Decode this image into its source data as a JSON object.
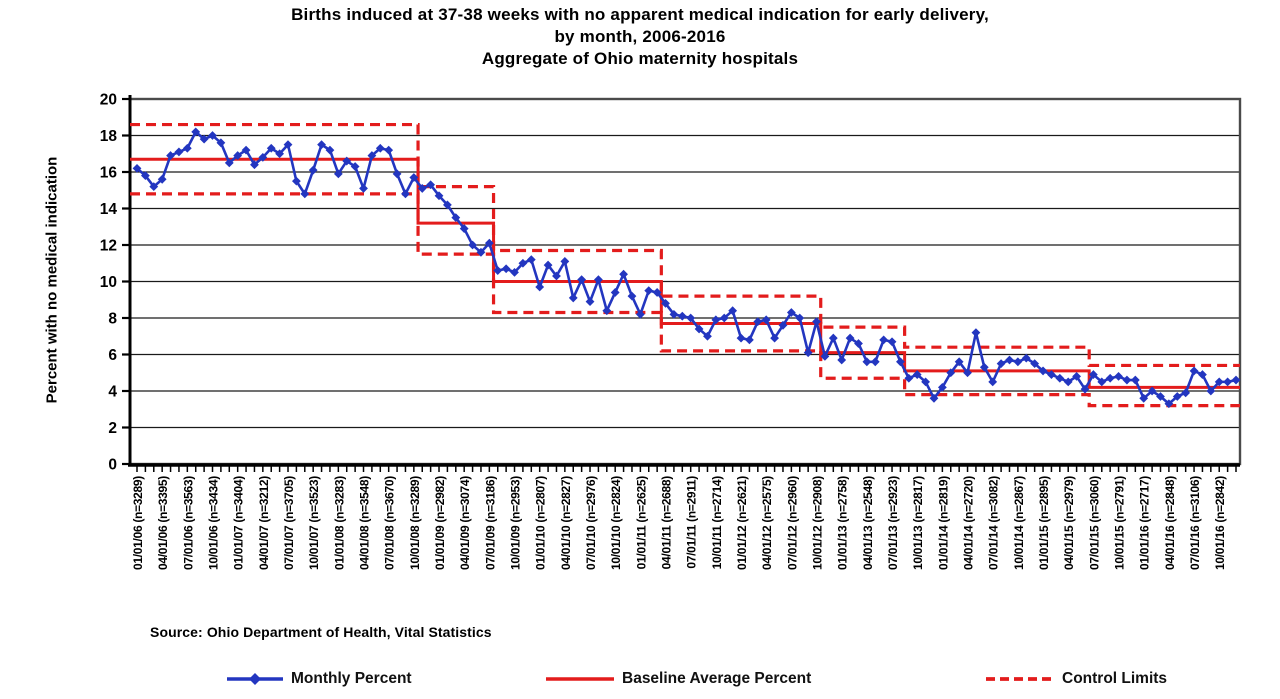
{
  "page": {
    "title_line1": "Births induced at 37-38 weeks with no apparent medical indication for early delivery,",
    "title_line2": "by month, 2006-2016",
    "title_line3": "Aggregate of Ohio maternity hospitals",
    "source_note": "Source: Ohio Department of Health, Vital Statistics"
  },
  "legend": {
    "monthly_label": "Monthly Percent",
    "baseline_label": "Baseline Average Percent",
    "control_label": "Control Limits"
  },
  "chart_data": {
    "type": "line",
    "title": "Births induced at 37-38 weeks with no apparent medical indication for early delivery, by month, 2006-2016 - Aggregate of Ohio maternity hospitals",
    "ylabel": "Percent with no medical indication",
    "ylim": [
      0,
      20
    ],
    "yticks": [
      0,
      2,
      4,
      6,
      8,
      10,
      12,
      14,
      16,
      18,
      20
    ],
    "grid": "horizontal",
    "legend_position": "bottom",
    "months_total": 132,
    "x_label_interval_months": 3,
    "x_tick_labels": [
      "01/01/06 (n=3289)",
      "04/01/06 (n=3395)",
      "07/01/06 (n=3563)",
      "10/01/06 (n=3434)",
      "01/01/07 (n=3404)",
      "04/01/07 (n=3212)",
      "07/01/07 (n=3705)",
      "10/01/07 (n=3523)",
      "01/01/08 (n=3283)",
      "04/01/08 (n=3548)",
      "07/01/08 (n=3670)",
      "10/01/08 (n=3289)",
      "01/01/09 (n=2982)",
      "04/01/09 (n=3074)",
      "07/01/09 (n=3186)",
      "10/01/09 (n=2953)",
      "01/01/10 (n=2807)",
      "04/01/10 (n=2827)",
      "07/01/10 (n=2976)",
      "10/01/10 (n=2824)",
      "01/01/11 (n=2625)",
      "04/01/11 (n=2688)",
      "07/01/11 (n=2911)",
      "10/01/11 (n=2714)",
      "01/01/12 (n=2621)",
      "04/01/12 (n=2575)",
      "07/01/12 (n=2960)",
      "10/01/12 (n=2908)",
      "01/01/13 (n=2758)",
      "04/01/13 (n=2548)",
      "07/01/13 (n=2923)",
      "10/01/13 (n=2817)",
      "01/01/14 (n=2819)",
      "04/01/14 (n=2720)",
      "07/01/14 (n=3082)",
      "10/01/14 (n=2867)",
      "01/01/15 (n=2895)",
      "04/01/15 (n=2979)",
      "07/01/15 (n=3060)",
      "10/01/15 (n=2791)",
      "01/01/16 (n=2717)",
      "04/01/16 (n=2848)",
      "07/01/16 (n=3106)",
      "10/01/16 (n=2842)"
    ],
    "series": [
      {
        "name": "Monthly Percent",
        "style": "line-with-diamond-markers",
        "color": "#2336c0",
        "values": [
          16.2,
          15.8,
          15.2,
          15.6,
          16.9,
          17.1,
          17.3,
          18.2,
          17.8,
          18.0,
          17.6,
          16.5,
          16.9,
          17.2,
          16.4,
          16.8,
          17.3,
          17.0,
          17.5,
          15.5,
          14.8,
          16.1,
          17.5,
          17.2,
          15.9,
          16.6,
          16.3,
          15.1,
          16.9,
          17.3,
          17.2,
          15.9,
          14.8,
          15.7,
          15.1,
          15.3,
          14.7,
          14.2,
          13.5,
          12.9,
          12.0,
          11.6,
          12.1,
          10.6,
          10.7,
          10.5,
          11.0,
          11.2,
          9.7,
          10.9,
          10.3,
          11.1,
          9.1,
          10.1,
          8.9,
          10.1,
          8.4,
          9.4,
          10.4,
          9.2,
          8.2,
          9.5,
          9.4,
          8.8,
          8.2,
          8.1,
          8.0,
          7.4,
          7.0,
          7.9,
          8.0,
          8.4,
          6.9,
          6.8,
          7.8,
          7.9,
          6.9,
          7.6,
          8.3,
          8.0,
          6.1,
          7.8,
          5.9,
          6.9,
          5.7,
          6.9,
          6.6,
          5.6,
          5.6,
          6.8,
          6.7,
          5.6,
          4.7,
          4.9,
          4.5,
          3.6,
          4.2,
          5.0,
          5.6,
          5.0,
          7.2,
          5.3,
          4.5,
          5.5,
          5.7,
          5.6,
          5.8,
          5.5,
          5.1,
          4.9,
          4.7,
          4.5,
          4.8,
          4.1,
          4.9,
          4.5,
          4.7,
          4.8,
          4.6,
          4.6,
          3.6,
          4.0,
          3.7,
          3.3,
          3.7,
          3.9,
          5.1,
          4.9,
          4.0,
          4.5,
          4.5,
          4.6
        ]
      },
      {
        "name": "Baseline Average Percent",
        "style": "step-line",
        "color": "#e31c1c"
      },
      {
        "name": "Control Limits",
        "style": "step-line-dashed",
        "color": "#e31c1c"
      }
    ],
    "baseline_segments": [
      {
        "start_index": 0,
        "end_index": 33,
        "average": 16.7,
        "upper_limit": 18.6,
        "lower_limit": 14.8
      },
      {
        "start_index": 34,
        "end_index": 42,
        "average": 13.2,
        "upper_limit": 15.2,
        "lower_limit": 11.5
      },
      {
        "start_index": 43,
        "end_index": 62,
        "average": 10.0,
        "upper_limit": 11.7,
        "lower_limit": 8.3
      },
      {
        "start_index": 63,
        "end_index": 81,
        "average": 7.7,
        "upper_limit": 9.2,
        "lower_limit": 6.2
      },
      {
        "start_index": 82,
        "end_index": 91,
        "average": 6.1,
        "upper_limit": 7.5,
        "lower_limit": 4.7
      },
      {
        "start_index": 92,
        "end_index": 113,
        "average": 5.1,
        "upper_limit": 6.4,
        "lower_limit": 3.8
      },
      {
        "start_index": 114,
        "end_index": 131,
        "average": 4.2,
        "upper_limit": 5.4,
        "lower_limit": 3.2
      }
    ]
  }
}
